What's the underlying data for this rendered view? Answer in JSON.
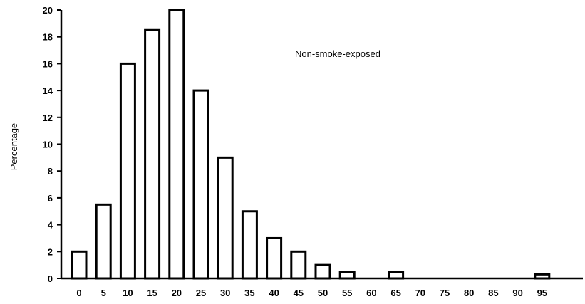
{
  "chart_data": {
    "type": "bar",
    "title": "",
    "annotation": "Non-smoke-exposed",
    "xlabel": "",
    "ylabel": "Percentage",
    "categories": [
      "0",
      "5",
      "10",
      "15",
      "20",
      "25",
      "30",
      "35",
      "40",
      "45",
      "50",
      "55",
      "60",
      "65",
      "70",
      "75",
      "80",
      "85",
      "90",
      "95"
    ],
    "values": [
      2,
      5.5,
      16,
      18.5,
      20,
      14,
      9,
      5,
      3,
      2,
      1,
      0.5,
      0,
      0.5,
      0,
      0,
      0,
      0,
      0,
      0.3
    ],
    "ylim": [
      0,
      20
    ],
    "yticks": [
      0,
      2,
      4,
      6,
      8,
      10,
      12,
      14,
      16,
      18,
      20
    ],
    "grid": false,
    "legend": "none",
    "colors": {
      "bar_fill": "#ffffff",
      "bar_stroke": "#000000"
    }
  }
}
